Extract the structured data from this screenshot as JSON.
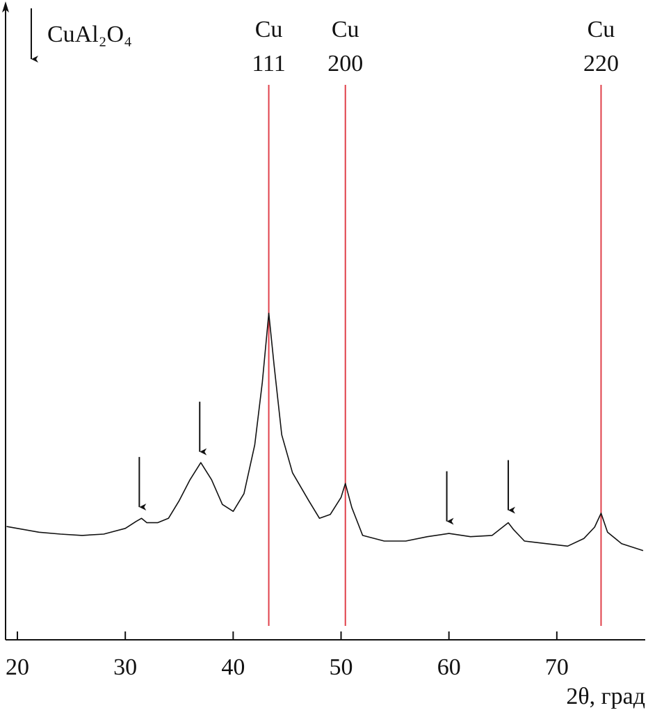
{
  "chart_data": {
    "type": "line",
    "x_label": "2θ, град",
    "xlim": [
      19,
      78
    ],
    "ylim": [
      0,
      100
    ],
    "xticks": [
      20,
      30,
      40,
      50,
      60,
      70
    ],
    "series": [
      {
        "color": "#111111",
        "x": [
          19,
          20,
          22,
          24,
          26,
          28,
          30,
          31,
          31.5,
          32,
          33,
          34,
          35,
          36,
          37,
          38,
          39,
          40,
          41,
          42,
          42.7,
          43.3,
          43.8,
          44.5,
          45.5,
          47,
          48,
          49,
          50,
          50.4,
          51,
          52,
          54,
          56,
          58,
          60,
          62,
          64,
          65.5,
          66,
          67,
          69,
          71,
          72.5,
          73.5,
          74.1,
          74.7,
          76,
          78
        ],
        "values": [
          17.9,
          17.6,
          17.0,
          16.7,
          16.5,
          16.7,
          17.6,
          18.7,
          19.2,
          18.5,
          18.5,
          19.2,
          22.0,
          25.3,
          28.0,
          25.3,
          21.4,
          20.3,
          23.1,
          30.8,
          40.7,
          51.6,
          43.3,
          32.4,
          26.4,
          22.0,
          19.2,
          19.8,
          22.5,
          24.7,
          20.9,
          16.5,
          15.6,
          15.6,
          16.3,
          16.8,
          16.3,
          16.5,
          18.5,
          17.4,
          15.6,
          15.2,
          14.8,
          16.0,
          17.8,
          20.0,
          17.0,
          15.2,
          14.1
        ]
      }
    ],
    "reflections": [
      {
        "phase": "Cu",
        "hkl": "111",
        "x": 43.3,
        "color": "#e0404a"
      },
      {
        "phase": "Cu",
        "hkl": "200",
        "x": 50.4,
        "color": "#e0404a"
      },
      {
        "phase": "Cu",
        "hkl": "220",
        "x": 74.1,
        "color": "#e0404a"
      }
    ],
    "markers": {
      "name": "CuAl₂O₄",
      "x": [
        31.3,
        36.9,
        59.8,
        65.5
      ]
    }
  }
}
